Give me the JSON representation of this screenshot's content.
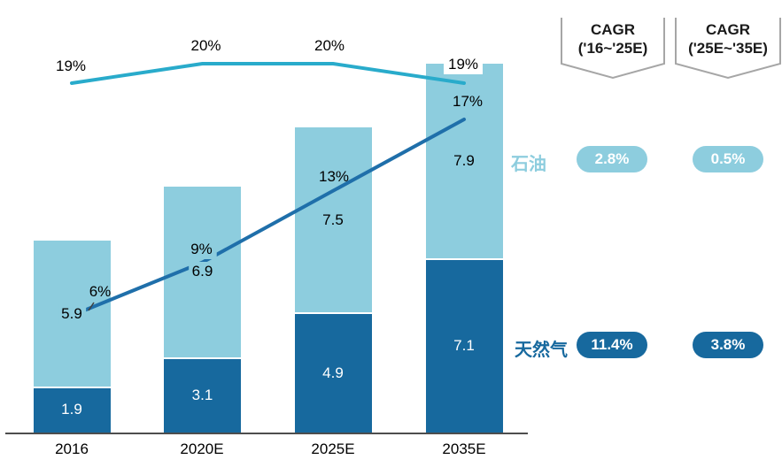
{
  "chart_data": {
    "type": "bar",
    "subtype": "stacked-bar-with-lines",
    "categories": [
      "2016",
      "2020E",
      "2025E",
      "2035E"
    ],
    "bar_series": [
      {
        "key": "natural_gas",
        "name": "天然气",
        "values": [
          1.9,
          3.1,
          4.9,
          7.1
        ],
        "color": "#17699E",
        "value_label_color": "#FFFFFF"
      },
      {
        "key": "oil",
        "name": "石油",
        "values": [
          5.9,
          6.9,
          7.5,
          7.9
        ],
        "color": "#8DCDDE",
        "value_label_color": "#000000"
      }
    ],
    "line_series": [
      {
        "key": "oil_share_pct",
        "values": [
          19,
          20,
          20,
          19
        ],
        "labels": [
          "19%",
          "20%",
          "20%",
          "19%"
        ],
        "color": "#29ABCB"
      },
      {
        "key": "natural_gas_share_pct",
        "values": [
          6,
          9,
          13,
          17
        ],
        "labels": [
          "6%",
          "9%",
          "13%",
          "17%"
        ],
        "color": "#1F6FAA"
      }
    ],
    "grid": "off",
    "legend_position": "right"
  },
  "right_panel": {
    "headers": [
      {
        "line1": "CAGR",
        "line2": "('16~'25E)"
      },
      {
        "line1": "CAGR",
        "line2": "('25E~'35E)"
      }
    ],
    "rows": [
      {
        "label": "石油",
        "color": "#8DCDDE",
        "values": [
          "2.8%",
          "0.5%"
        ]
      },
      {
        "label": "天然气",
        "color": "#17699E",
        "values": [
          "11.4%",
          "3.8%"
        ]
      }
    ]
  },
  "colors": {
    "oil_bar": "#8DCDDE",
    "gas_bar": "#17699E",
    "oil_line": "#29ABCB",
    "gas_line": "#1F6FAA",
    "banner_border": "#A6A6A6",
    "axis": "#4D4D4D"
  }
}
